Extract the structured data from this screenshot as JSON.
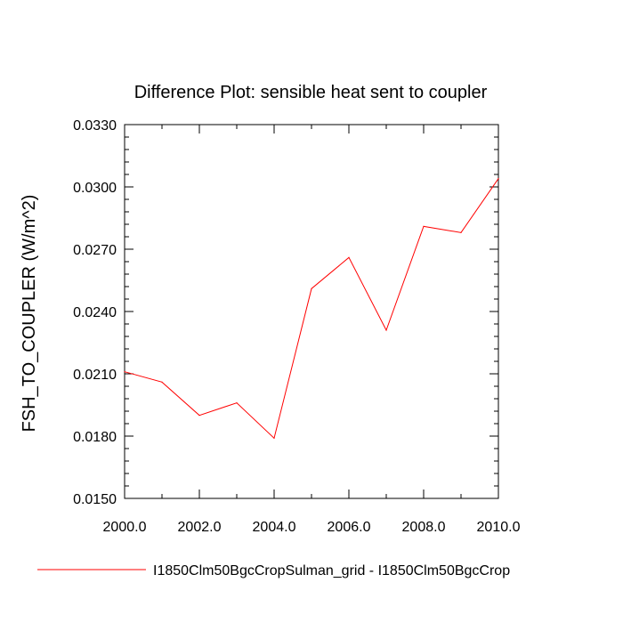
{
  "chart_data": {
    "type": "line",
    "title": "Difference Plot: sensible heat sent to coupler",
    "xlabel": "",
    "ylabel": "FSH_TO_COUPLER  (W/m^2)",
    "xlim": [
      2000,
      2010
    ],
    "ylim": [
      0.015,
      0.033
    ],
    "xticks": [
      2000,
      2002,
      2004,
      2006,
      2008,
      2010
    ],
    "xtick_labels": [
      "2000.0",
      "2002.0",
      "2004.0",
      "2006.0",
      "2008.0",
      "2010.0"
    ],
    "yticks": [
      0.015,
      0.018,
      0.021,
      0.024,
      0.027,
      0.03,
      0.033
    ],
    "ytick_labels": [
      "0.0150",
      "0.0180",
      "0.0210",
      "0.0240",
      "0.0270",
      "0.0300",
      "0.0330"
    ],
    "grid": false,
    "legend_position": "bottom",
    "series": [
      {
        "name": "I1850Clm50BgcCropSulman_grid - I1850Clm50BgcCrop",
        "color": "#ff0000",
        "x": [
          2000,
          2001,
          2002,
          2003,
          2004,
          2005,
          2006,
          2007,
          2008,
          2009,
          2010
        ],
        "y": [
          0.0211,
          0.0206,
          0.019,
          0.0196,
          0.0179,
          0.0251,
          0.0266,
          0.0231,
          0.0281,
          0.0278,
          0.0304
        ]
      }
    ]
  }
}
